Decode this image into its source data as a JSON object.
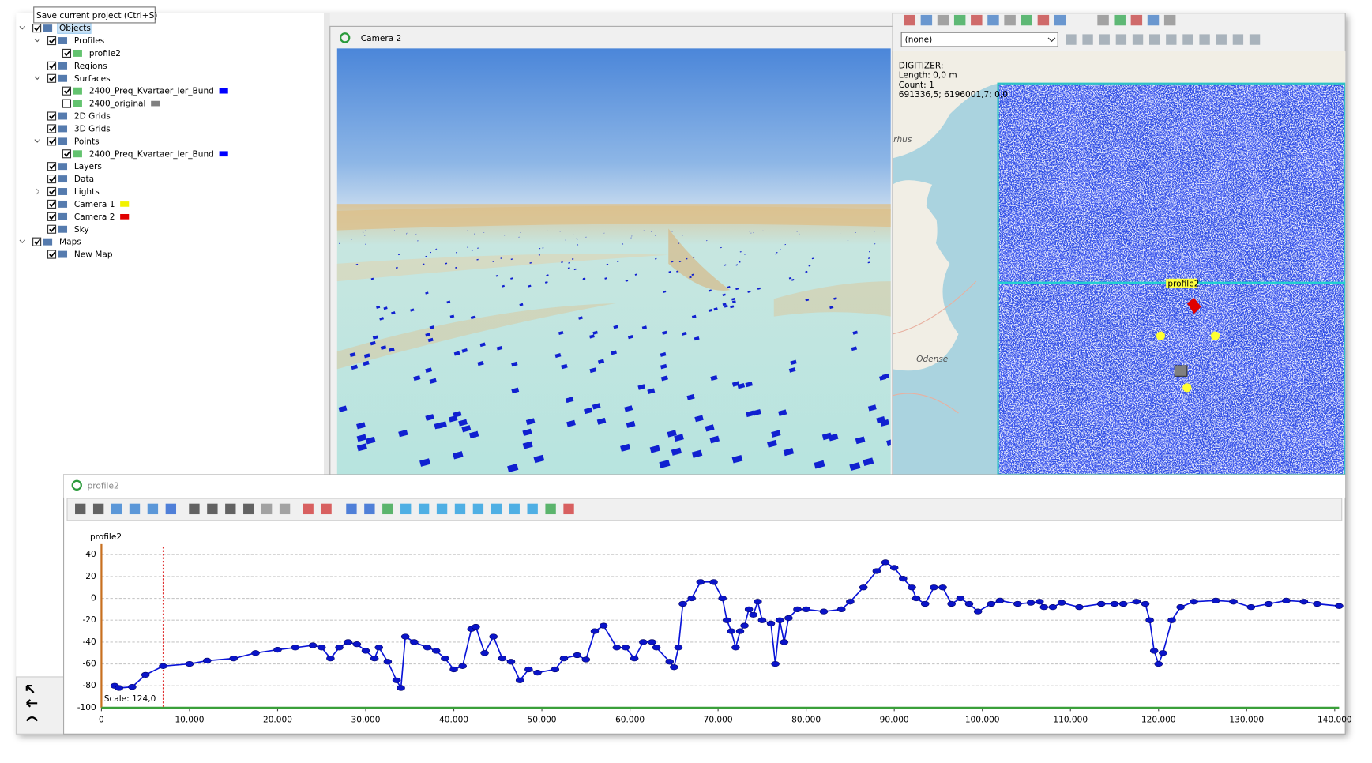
{
  "tooltip": "Save current project (Ctrl+S)",
  "tree": [
    {
      "label": "Objects",
      "level": 0,
      "checked": true,
      "expander": "open",
      "selected": true
    },
    {
      "label": "Profiles",
      "level": 1,
      "checked": true,
      "expander": "open"
    },
    {
      "label": "profile2",
      "level": 2,
      "checked": true
    },
    {
      "label": "Regions",
      "level": 1,
      "checked": true
    },
    {
      "label": "Surfaces",
      "level": 1,
      "checked": true,
      "expander": "open"
    },
    {
      "label": "2400_Preq_Kvartaer_ler_Bund",
      "level": 2,
      "checked": true,
      "swatch": "#0000ff"
    },
    {
      "label": "2400_original",
      "level": 2,
      "checked": false,
      "swatch": "#808080"
    },
    {
      "label": "2D Grids",
      "level": 1,
      "checked": true
    },
    {
      "label": "3D Grids",
      "level": 1,
      "checked": true
    },
    {
      "label": "Points",
      "level": 1,
      "checked": true,
      "expander": "open"
    },
    {
      "label": "2400_Preq_Kvartaer_ler_Bund",
      "level": 2,
      "checked": true,
      "swatch": "#0000ff"
    },
    {
      "label": "Layers",
      "level": 1,
      "checked": true
    },
    {
      "label": "Data",
      "level": 1,
      "checked": true
    },
    {
      "label": "Lights",
      "level": 1,
      "checked": true,
      "expander": "closed"
    },
    {
      "label": "Camera 1",
      "level": 1,
      "checked": true,
      "swatch": "#f2f200"
    },
    {
      "label": "Camera 2",
      "level": 1,
      "checked": true,
      "swatch": "#e00000"
    },
    {
      "label": "Sky",
      "level": 1,
      "checked": true
    },
    {
      "label": "Maps",
      "level": 0,
      "checked": true,
      "expander": "open"
    },
    {
      "label": "New Map",
      "level": 1,
      "checked": true
    }
  ],
  "camera_window": {
    "title": "Camera 2"
  },
  "map": {
    "dropdown": "(none)",
    "digitizer": [
      "DIGITIZER:",
      "Length: 0,0 m",
      "Count:  1",
      "691336,5; 6196001,7; 0,0"
    ],
    "places": [
      "rhus",
      "Odense"
    ],
    "profile_label": "profile2"
  },
  "profile_window": {
    "title": "profile2",
    "scale": "Scale: 124,0"
  },
  "chart_data": {
    "type": "line",
    "title": "profile2",
    "color": "#0a14d8",
    "cursor_x": 7000,
    "x": [
      1500,
      2000,
      3500,
      5000,
      7000,
      10000,
      12000,
      15000,
      17500,
      20000,
      22000,
      24000,
      25000,
      26000,
      27000,
      28000,
      29000,
      30000,
      31000,
      31500,
      32500,
      33500,
      34000,
      34500,
      35500,
      37000,
      38000,
      39000,
      40000,
      41000,
      42000,
      42500,
      43500,
      44500,
      45500,
      46500,
      47500,
      48500,
      49500,
      51500,
      52500,
      54000,
      55000,
      56000,
      57000,
      58500,
      59500,
      60500,
      61500,
      62500,
      63000,
      64500,
      65000,
      65500,
      66000,
      67000,
      68000,
      69500,
      70500,
      71000,
      71500,
      72000,
      72500,
      73000,
      73500,
      74000,
      74500,
      75000,
      76000,
      76500,
      77000,
      77500,
      78000,
      79000,
      80000,
      82000,
      84000,
      85000,
      86500,
      88000,
      89000,
      90000,
      91000,
      92000,
      92500,
      93500,
      94500,
      95500,
      96500,
      97500,
      98500,
      99500,
      101000,
      102000,
      104000,
      105500,
      106500,
      107000,
      108000,
      109000,
      111000,
      113500,
      115000,
      116000,
      117500,
      118500,
      119000,
      119500,
      120000,
      120500,
      121500,
      122500,
      124000,
      126500,
      128500,
      130500,
      132500,
      134500,
      136500,
      138000,
      140500
    ],
    "values": [
      -80,
      -82,
      -81,
      -70,
      -62,
      -60,
      -57,
      -55,
      -50,
      -47,
      -45,
      -43,
      -45,
      -55,
      -45,
      -40,
      -42,
      -48,
      -55,
      -45,
      -58,
      -75,
      -82,
      -35,
      -40,
      -45,
      -48,
      -55,
      -65,
      -62,
      -28,
      -26,
      -50,
      -35,
      -55,
      -58,
      -75,
      -65,
      -68,
      -65,
      -55,
      -52,
      -56,
      -30,
      -25,
      -45,
      -45,
      -55,
      -40,
      -40,
      -45,
      -58,
      -63,
      -45,
      -5,
      0,
      15,
      15,
      0,
      -20,
      -30,
      -45,
      -30,
      -25,
      -10,
      -15,
      -3,
      -20,
      -23,
      -60,
      -20,
      -40,
      -18,
      -10,
      -10,
      -12,
      -10,
      -3,
      10,
      25,
      33,
      28,
      18,
      10,
      0,
      -5,
      10,
      10,
      -5,
      0,
      -5,
      -12,
      -5,
      -2,
      -5,
      -4,
      -3,
      -8,
      -8,
      -4,
      -8,
      -5,
      -5,
      -5,
      -3,
      -5,
      -20,
      -48,
      -60,
      -50,
      -20,
      -8,
      -3,
      -2,
      -3,
      -8,
      -5,
      -2,
      -3,
      -5,
      -7
    ],
    "xlim": [
      0,
      140500
    ],
    "ylim": [
      -100,
      40
    ],
    "xticks": [
      0,
      {
        "value": 10000,
        "label": "10.000"
      },
      {
        "value": 20000,
        "label": "20.000"
      },
      {
        "value": 30000,
        "label": "30.000"
      },
      {
        "value": 40000,
        "label": "40.000"
      },
      {
        "value": 50000,
        "label": "50.000"
      },
      {
        "value": 60000,
        "label": "60.000"
      },
      {
        "value": 70000,
        "label": "70.000"
      },
      {
        "value": 80000,
        "label": "80.000"
      },
      {
        "value": 90000,
        "label": "90.000"
      },
      {
        "value": 100000,
        "label": "100.000"
      },
      {
        "value": 110000,
        "label": "110.000"
      },
      {
        "value": 120000,
        "label": "120.000"
      },
      {
        "value": 130000,
        "label": "130.000"
      },
      {
        "value": 140000,
        "label": "140.000"
      }
    ],
    "yticks": [
      40,
      20,
      0,
      -20,
      -40,
      -60,
      -80,
      -100
    ],
    "grid": true
  }
}
